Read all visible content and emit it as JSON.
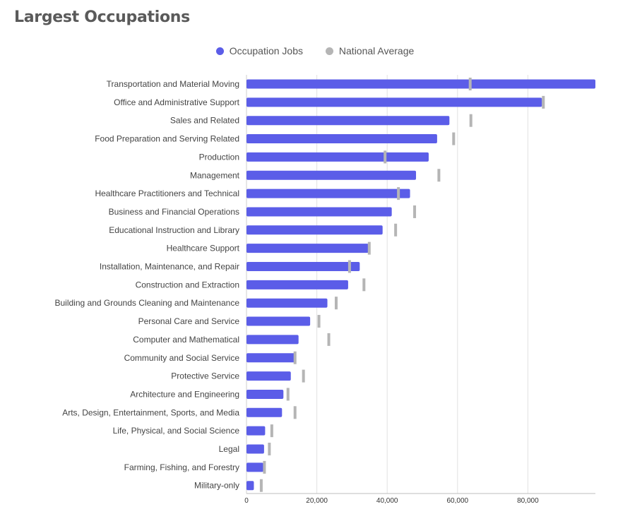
{
  "title": "Largest Occupations",
  "legend": {
    "series1": "Occupation Jobs",
    "series2": "National Average"
  },
  "colors": {
    "jobs": "#5b5de8",
    "average": "#b5b5b5",
    "grid": "#e2e2e2"
  },
  "chart_data": {
    "type": "bar",
    "orientation": "horizontal",
    "title": "Largest Occupations",
    "categories": [
      "Transportation and Material Moving",
      "Office and Administrative Support",
      "Sales and Related",
      "Food Preparation and Serving Related",
      "Production",
      "Management",
      "Healthcare Practitioners and Technical",
      "Business and Financial Operations",
      "Educational Instruction and Library",
      "Healthcare Support",
      "Installation, Maintenance, and Repair",
      "Construction and Extraction",
      "Building and Grounds Cleaning and Maintenance",
      "Personal Care and Service",
      "Computer and Mathematical",
      "Community and Social Service",
      "Protective Service",
      "Architecture and Engineering",
      "Arts, Design, Entertainment, Sports, and Media",
      "Life, Physical, and Social Science",
      "Legal",
      "Farming, Fishing, and Forestry",
      "Military-only"
    ],
    "series": [
      {
        "name": "Occupation Jobs",
        "values": [
          99200,
          84000,
          57700,
          54200,
          51800,
          48200,
          46500,
          41300,
          38700,
          34700,
          32200,
          28900,
          23000,
          18100,
          14800,
          13800,
          12600,
          10500,
          10100,
          5300,
          5000,
          4800,
          2100
        ]
      },
      {
        "name": "National Average",
        "values": [
          63600,
          84400,
          63800,
          58900,
          39400,
          54700,
          43200,
          47800,
          42400,
          34900,
          29300,
          33400,
          25500,
          20600,
          23400,
          13800,
          16200,
          11800,
          13800,
          7200,
          6500,
          5100,
          4200
        ]
      }
    ],
    "xticks": [
      "0",
      "20,000",
      "40,000",
      "60,000",
      "80,000"
    ],
    "xtick_values": [
      0,
      20000,
      40000,
      60000,
      80000
    ],
    "xlim": [
      0,
      99200
    ],
    "grid": true,
    "legend_position": "top-center"
  }
}
